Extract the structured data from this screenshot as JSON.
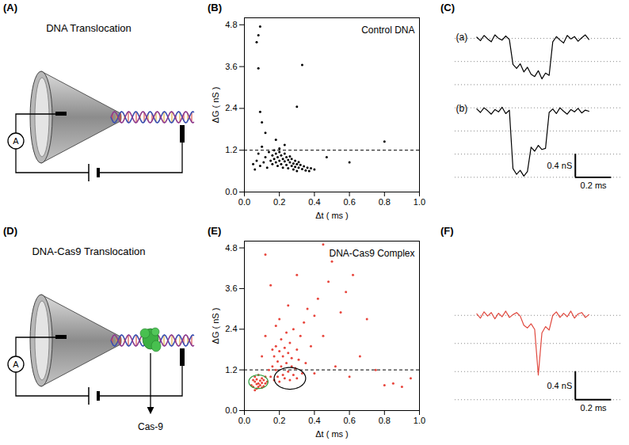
{
  "diagrams": [
    {
      "panel": "(A)",
      "title": "DNA Translocation",
      "meter_label": "A"
    },
    {
      "panel": "(D)",
      "title": "DNA-Cas9 Translocation",
      "meter_label": "A",
      "protein_label": "Cas-9"
    }
  ],
  "chart_data": [
    {
      "panel": "(B)",
      "type": "scatter",
      "annotation": "Control DNA",
      "x_label": "Δt ( ms )",
      "y_label": "ΔG ( nS )",
      "xlim": [
        0,
        1
      ],
      "ylim": [
        0,
        5
      ],
      "xticks": [
        {
          "value": 0,
          "label": "0.0"
        },
        0.2,
        0.4,
        0.6,
        0.8,
        {
          "value": 1,
          "label": "1.0"
        }
      ],
      "yticks": [
        {
          "value": 0,
          "label": "0.0"
        },
        1.2,
        2.4,
        3.6,
        4.8
      ],
      "grid": false,
      "color": "#000000",
      "marker": "circle",
      "reference_line": {
        "y": 1.2,
        "line_style": "dashed"
      },
      "x": [
        0.05,
        0.06,
        0.07,
        0.08,
        0.09,
        0.1,
        0.11,
        0.12,
        0.13,
        0.14,
        0.15,
        0.16,
        0.16,
        0.17,
        0.17,
        0.18,
        0.18,
        0.19,
        0.19,
        0.2,
        0.2,
        0.21,
        0.21,
        0.22,
        0.22,
        0.23,
        0.23,
        0.24,
        0.24,
        0.25,
        0.25,
        0.26,
        0.26,
        0.27,
        0.27,
        0.28,
        0.28,
        0.29,
        0.29,
        0.3,
        0.3,
        0.31,
        0.31,
        0.32,
        0.33,
        0.34,
        0.35,
        0.36,
        0.37,
        0.38,
        0.4,
        0.2,
        0.23,
        0.18,
        0.12,
        0.1,
        0.09,
        0.3,
        0.08,
        0.33,
        0.07,
        0.08,
        0.09,
        0.47,
        0.6,
        0.8
      ],
      "values": [
        0.8,
        0.65,
        0.9,
        1.1,
        0.75,
        1.3,
        0.85,
        1.0,
        0.7,
        1.15,
        0.9,
        1.05,
        0.8,
        1.2,
        0.95,
        0.85,
        1.1,
        0.75,
        1.0,
        0.9,
        1.15,
        0.8,
        1.05,
        0.95,
        0.7,
        0.88,
        1.1,
        0.78,
        1.0,
        0.92,
        0.68,
        0.85,
        1.02,
        0.75,
        0.95,
        0.82,
        0.65,
        0.9,
        0.72,
        0.8,
        0.6,
        0.86,
        0.7,
        0.78,
        0.66,
        0.74,
        0.62,
        0.7,
        0.6,
        0.68,
        0.65,
        1.25,
        1.35,
        1.5,
        1.7,
        2.0,
        2.3,
        2.45,
        3.55,
        3.65,
        4.3,
        4.5,
        4.75,
        1.0,
        0.85,
        1.45
      ]
    },
    {
      "panel": "(C)",
      "type": "line",
      "tick_labels": false,
      "grid": true,
      "xlim": [
        -0.12,
        0.8
      ],
      "ylim": [
        0.2,
        3.1
      ],
      "yticks": [
        0.4,
        0.8,
        1.2,
        1.6,
        2.0,
        2.4,
        2.8
      ],
      "x": [
        0,
        0.02,
        0.04,
        0.06,
        0.08,
        0.1,
        0.12,
        0.14,
        0.16,
        0.18,
        0.2,
        0.22,
        0.24,
        0.26,
        0.28,
        0.3,
        0.32,
        0.34,
        0.36,
        0.38,
        0.4,
        0.42,
        0.44,
        0.46,
        0.48,
        0.5,
        0.52,
        0.54,
        0.56,
        0.58,
        0.6,
        0.62
      ],
      "series": [
        {
          "name": "(a)",
          "color": "#000000",
          "values": [
            2.82,
            2.76,
            2.85,
            2.79,
            2.74,
            2.86,
            2.8,
            2.77,
            2.84,
            2.78,
            2.35,
            2.28,
            2.36,
            2.22,
            2.3,
            2.18,
            2.14,
            2.24,
            2.1,
            2.2,
            2.16,
            2.74,
            2.83,
            2.77,
            2.72,
            2.85,
            2.79,
            2.83,
            2.75,
            2.81,
            2.86,
            2.78
          ]
        },
        {
          "name": "(b)",
          "color": "#000000",
          "values": [
            1.58,
            1.52,
            1.6,
            1.55,
            1.49,
            1.57,
            1.53,
            1.61,
            1.5,
            1.56,
            0.55,
            0.45,
            0.52,
            0.42,
            0.5,
            0.92,
            0.85,
            0.95,
            0.88,
            0.9,
            1.52,
            1.58,
            1.5,
            1.6,
            1.54,
            1.49,
            1.57,
            1.53,
            1.59,
            1.51,
            1.56,
            1.54
          ]
        }
      ],
      "scale_bar": {
        "x": 0.2,
        "x_label": "0.2 ms",
        "y": 0.4,
        "y_label": "0.4 nS"
      }
    },
    {
      "panel": "(E)",
      "type": "scatter",
      "annotation": "DNA-Cas9 Complex",
      "x_label": "Δt ( ms )",
      "y_label": "ΔG ( nS )",
      "xlim": [
        0,
        1
      ],
      "ylim": [
        0,
        5
      ],
      "xticks": [
        {
          "value": 0,
          "label": "0.0"
        },
        0.2,
        0.4,
        0.6,
        0.8,
        {
          "value": 1,
          "label": "1.0"
        }
      ],
      "yticks": [
        {
          "value": 0,
          "label": "0.0"
        },
        1.2,
        2.4,
        3.6,
        4.8
      ],
      "grid": false,
      "color": "#e8453c",
      "marker": "circle",
      "reference_line": {
        "y": 1.2,
        "line_style": "dashed"
      },
      "ellipses": [
        {
          "cx": 0.08,
          "cy": 0.85,
          "rx": 0.055,
          "ry": 0.2,
          "color": "#2e9e3e"
        },
        {
          "cx": 0.26,
          "cy": 0.95,
          "rx": 0.09,
          "ry": 0.32,
          "color": "#000000"
        }
      ],
      "x": [
        0.04,
        0.05,
        0.05,
        0.06,
        0.06,
        0.07,
        0.07,
        0.08,
        0.08,
        0.08,
        0.09,
        0.09,
        0.1,
        0.1,
        0.11,
        0.11,
        0.12,
        0.12,
        0.13,
        0.07,
        0.06,
        0.1,
        0.15,
        0.16,
        0.17,
        0.17,
        0.18,
        0.18,
        0.19,
        0.19,
        0.2,
        0.2,
        0.21,
        0.21,
        0.22,
        0.22,
        0.23,
        0.23,
        0.24,
        0.24,
        0.25,
        0.25,
        0.26,
        0.26,
        0.27,
        0.27,
        0.28,
        0.28,
        0.29,
        0.3,
        0.3,
        0.31,
        0.32,
        0.33,
        0.34,
        0.35,
        0.36,
        0.38,
        0.4,
        0.42,
        0.45,
        0.48,
        0.5,
        0.55,
        0.58,
        0.62,
        0.66,
        0.7,
        0.75,
        0.8,
        0.85,
        0.9,
        0.95,
        0.2,
        0.15,
        0.12,
        0.25,
        0.18,
        0.1,
        0.12,
        0.3,
        0.45,
        0.52,
        0.6,
        0.4,
        0.14,
        0.16
      ],
      "values": [
        0.75,
        0.9,
        0.7,
        0.85,
        1.0,
        0.78,
        0.92,
        0.8,
        0.7,
        1.05,
        0.88,
        0.75,
        0.82,
        0.95,
        0.72,
        0.9,
        0.8,
        1.0,
        0.85,
        0.65,
        0.6,
        0.68,
        1.0,
        1.3,
        0.9,
        1.6,
        1.2,
        1.9,
        1.0,
        1.45,
        1.75,
        0.85,
        1.3,
        2.1,
        1.05,
        1.6,
        1.85,
        0.95,
        1.4,
        2.3,
        1.15,
        1.7,
        0.9,
        2.0,
        1.3,
        1.55,
        1.05,
        2.4,
        1.25,
        1.8,
        0.95,
        1.5,
        2.2,
        1.1,
        2.6,
        1.4,
        3.0,
        1.9,
        2.8,
        3.3,
        2.2,
        3.8,
        4.4,
        2.9,
        3.5,
        4.0,
        1.6,
        2.7,
        1.2,
        0.75,
        0.8,
        0.7,
        0.95,
        2.7,
        3.7,
        4.6,
        3.1,
        2.5,
        1.6,
        2.2,
        4.0,
        4.9,
        1.3,
        1.0,
        1.1,
        1.2,
        1.8
      ]
    },
    {
      "panel": "(F)",
      "type": "line",
      "tick_labels": false,
      "grid": true,
      "xlim": [
        -0.12,
        0.8
      ],
      "ylim": [
        0.6,
        2.2
      ],
      "yticks": [
        0.8,
        1.2,
        1.6,
        2.0
      ],
      "x": [
        0,
        0.02,
        0.04,
        0.06,
        0.08,
        0.1,
        0.12,
        0.14,
        0.16,
        0.18,
        0.2,
        0.22,
        0.24,
        0.26,
        0.28,
        0.3,
        0.32,
        0.34,
        0.36,
        0.38,
        0.4,
        0.42,
        0.44,
        0.46,
        0.48,
        0.5,
        0.52,
        0.54,
        0.56,
        0.58,
        0.6,
        0.62
      ],
      "series": [
        {
          "color": "#e0483e",
          "values": [
            2.02,
            1.96,
            2.05,
            1.99,
            2.04,
            1.95,
            2.03,
            1.98,
            2.06,
            1.97,
            2.01,
            2.04,
            1.99,
            1.86,
            1.82,
            1.88,
            1.8,
            1.15,
            1.75,
            1.84,
            1.79,
            2.0,
            2.05,
            1.97,
            2.03,
            1.98,
            2.06,
            1.96,
            2.02,
            2.04,
            1.97,
            2.01
          ]
        }
      ],
      "scale_bar": {
        "x": 0.2,
        "x_label": "0.2 ms",
        "y": 0.4,
        "y_label": "0.4 nS"
      }
    }
  ]
}
